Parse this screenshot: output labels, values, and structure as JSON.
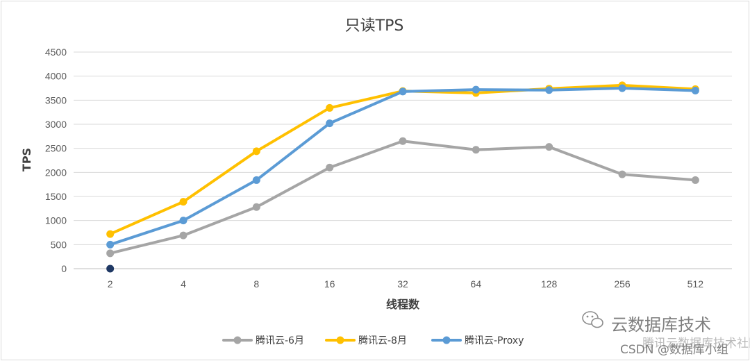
{
  "chart_data": {
    "type": "line",
    "title": "只读TPS",
    "xlabel": "线程数",
    "ylabel": "TPS",
    "categories": [
      "2",
      "4",
      "8",
      "16",
      "32",
      "64",
      "128",
      "256",
      "512"
    ],
    "yticks": [
      "0",
      "500",
      "1000",
      "1500",
      "2000",
      "2500",
      "3000",
      "3500",
      "4000",
      "4500"
    ],
    "ylim": [
      0,
      4500
    ],
    "grid": true,
    "legend_position": "bottom",
    "series": [
      {
        "name": "腾讯云-6月",
        "color": "#a5a5a5",
        "values": [
          320,
          690,
          1280,
          2100,
          2650,
          2470,
          2530,
          1960,
          1840
        ]
      },
      {
        "name": "腾讯云-8月",
        "color": "#ffc000",
        "values": [
          720,
          1390,
          2440,
          3340,
          3690,
          3650,
          3740,
          3810,
          3730
        ]
      },
      {
        "name": "腾讯云-Proxy",
        "color": "#5b9bd5",
        "values": [
          500,
          1000,
          1840,
          3020,
          3680,
          3720,
          3710,
          3750,
          3700
        ]
      }
    ],
    "extra_point": {
      "x": "2",
      "y": 0,
      "color": "#1f3864"
    }
  },
  "watermark": {
    "line1": "云数据库技术",
    "line2": "CSDN @数据库小组",
    "line2_overlay": "腾讯云数据库技术社区",
    "icon": "wechat-icon"
  }
}
